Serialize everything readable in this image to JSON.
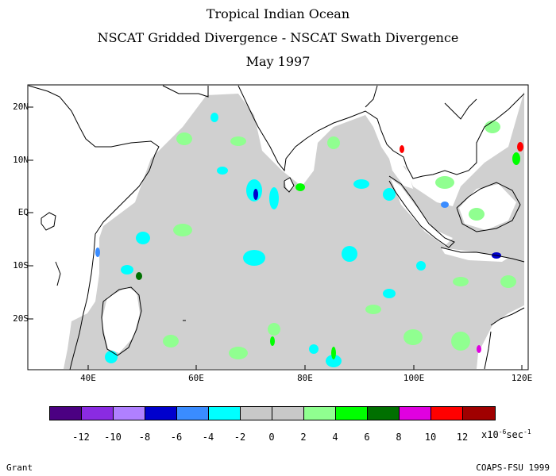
{
  "title_lines": [
    "Tropical Indian Ocean",
    "NSCAT Gridded Divergence - NSCAT Swath Divergence",
    "May 1997"
  ],
  "y_axis_labels": [
    "20N",
    "10N",
    "EQ",
    "10S",
    "20S"
  ],
  "x_axis_labels": [
    "40E",
    "60E",
    "80E",
    "100E",
    "120E"
  ],
  "colorbar": {
    "colors": [
      "#4b0082",
      "#8a2be2",
      "#b080ff",
      "#0000cd",
      "#3a8cff",
      "#00ffff",
      "#c8c8c8",
      "#c8c8c8",
      "#90ff90",
      "#00ff00",
      "#007000",
      "#e000e0",
      "#ff0000",
      "#a00000"
    ],
    "labels": [
      "-12",
      "-10",
      "-8",
      "-6",
      "-4",
      "-2",
      "0",
      "2",
      "4",
      "6",
      "8",
      "10",
      "12"
    ]
  },
  "units": {
    "prefix": "x10",
    "exp1": "-6",
    "mid": "sec",
    "exp2": "-1"
  },
  "footer": {
    "author": "Grant",
    "credit": "COAPS-FSU 1999"
  },
  "map_colors": {
    "land": "#ffffff",
    "ocean_background": "#d0d0d0",
    "coast": "#000000"
  }
}
